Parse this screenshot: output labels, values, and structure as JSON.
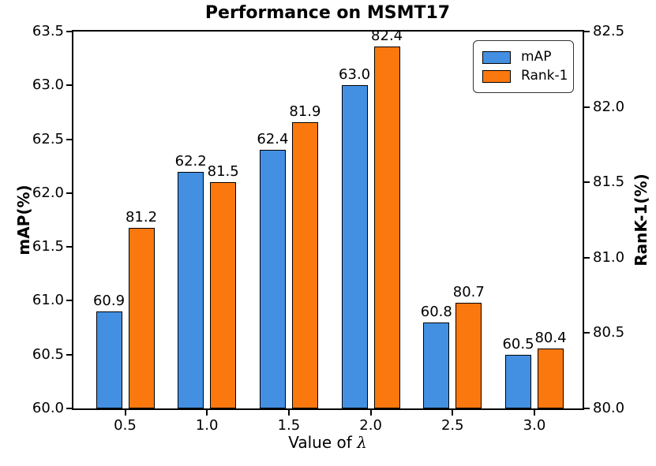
{
  "chart_data": {
    "type": "bar",
    "title": "Performance on MSMT17",
    "categories": [
      "0.5",
      "1.0",
      "1.5",
      "2.0",
      "2.5",
      "3.0"
    ],
    "xlabel": "Value of λ",
    "xlabel_prefix": "Value of ",
    "xlabel_symbol": "λ",
    "series": [
      {
        "name": "mAP",
        "axis": "left",
        "color": "#4390E2",
        "values": [
          60.9,
          62.2,
          62.4,
          63.0,
          60.8,
          60.5
        ]
      },
      {
        "name": "Rank-1",
        "axis": "right",
        "color": "#FA780D",
        "values": [
          81.2,
          81.5,
          81.9,
          82.4,
          80.7,
          80.4
        ]
      }
    ],
    "left_axis": {
      "label": "mAP(%)",
      "min": 60.0,
      "max": 63.5,
      "tick_labels": [
        "63.5",
        "63.0",
        "62.5",
        "62.0",
        "61.5",
        "61.0",
        "60.5",
        "60.0"
      ]
    },
    "right_axis": {
      "label": "RanK-1(%)",
      "min": 80.0,
      "max": 82.5,
      "tick_labels": [
        "82.5",
        "82.0",
        "81.5",
        "81.0",
        "80.5",
        "80.0"
      ]
    },
    "legend": {
      "position": "top-right",
      "entries": [
        "mAP",
        "Rank-1"
      ]
    },
    "grid": false,
    "styles": {
      "bar_edge_color": "#000000",
      "legend_border_color": "#333333"
    }
  }
}
